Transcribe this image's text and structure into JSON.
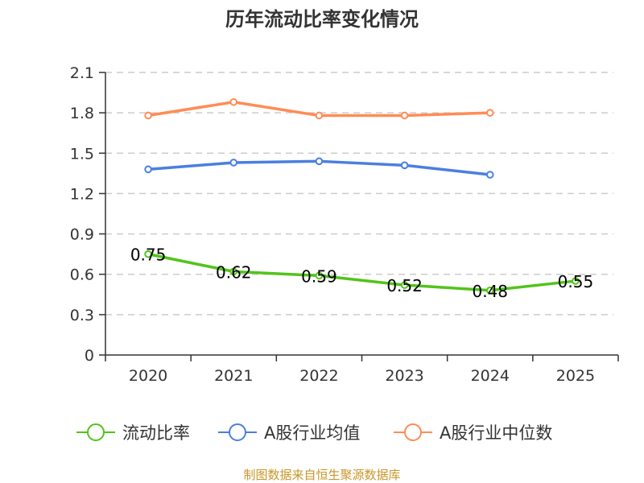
{
  "chart_data": {
    "type": "line",
    "title": "历年流动比率变化情况",
    "xlabel": "",
    "ylabel": "",
    "categories": [
      "2020",
      "2021",
      "2022",
      "2023",
      "2024",
      "2025"
    ],
    "ylim": [
      0,
      2.1
    ],
    "yticks": [
      "0",
      "0.3",
      "0.6",
      "0.9",
      "1.2",
      "1.5",
      "1.8",
      "2.1"
    ],
    "ytick_values": [
      0,
      0.3,
      0.6,
      0.9,
      1.2,
      1.5,
      1.8,
      2.1
    ],
    "grid": true,
    "legend_position": "bottom",
    "series": [
      {
        "name": "流动比率",
        "color": "#52c41a",
        "values": [
          0.75,
          0.62,
          0.59,
          0.52,
          0.48,
          0.55
        ],
        "labels": [
          "0.75",
          "0.62",
          "0.59",
          "0.52",
          "0.48",
          "0.55"
        ],
        "show_labels": true
      },
      {
        "name": "A股行业均值",
        "color": "#4a7fe0",
        "values": [
          1.38,
          1.43,
          1.44,
          1.41,
          1.34,
          null
        ],
        "show_labels": false
      },
      {
        "name": "A股行业中位数",
        "color": "#ff8c55",
        "values": [
          1.78,
          1.88,
          1.78,
          1.78,
          1.8,
          null
        ],
        "show_labels": false
      }
    ]
  },
  "footer": {
    "source": "制图数据来自恒生聚源数据库"
  }
}
